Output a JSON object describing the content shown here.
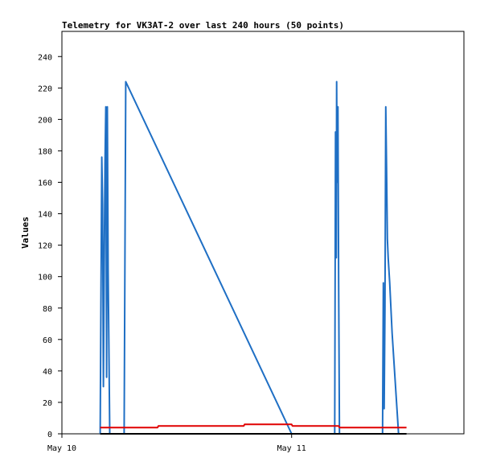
{
  "chart_data": {
    "type": "line",
    "title": "Telemetry for VK3AT-2 over last 240 hours (50 points)",
    "xlabel": "",
    "ylabel": "Values",
    "ylim": [
      0,
      256
    ],
    "yticks": [
      0,
      20,
      40,
      60,
      80,
      100,
      120,
      140,
      160,
      180,
      200,
      220,
      240
    ],
    "xlim": [
      "2024-05-10 00:00",
      "2024-05-11 18:00"
    ],
    "xticks": [
      {
        "x": "2024-05-10 00:00",
        "label": "May 10"
      },
      {
        "x": "2024-05-11 00:00",
        "label": "May 11"
      }
    ],
    "grid": false,
    "legend": "none",
    "series": [
      {
        "color": "#1f6fc4",
        "points": [
          [
            "2024-05-10 04:00",
            0
          ],
          [
            "2024-05-10 04:05",
            88
          ],
          [
            "2024-05-10 04:10",
            176
          ],
          [
            "2024-05-10 04:15",
            146
          ],
          [
            "2024-05-10 04:20",
            30
          ],
          [
            "2024-05-10 04:25",
            104
          ],
          [
            "2024-05-10 04:30",
            172
          ],
          [
            "2024-05-10 04:35",
            208
          ],
          [
            "2024-05-10 04:40",
            36
          ],
          [
            "2024-05-10 04:45",
            208
          ],
          [
            "2024-05-10 04:50",
            104
          ],
          [
            "2024-05-10 05:00",
            0
          ],
          [
            "2024-05-10 06:30",
            0
          ],
          [
            "2024-05-10 06:35",
            112
          ],
          [
            "2024-05-10 06:40",
            224
          ],
          [
            "2024-05-11 00:00",
            0
          ],
          [
            "2024-05-11 04:30",
            0
          ],
          [
            "2024-05-11 04:35",
            192
          ],
          [
            "2024-05-11 04:40",
            112
          ],
          [
            "2024-05-11 04:42",
            224
          ],
          [
            "2024-05-11 04:45",
            160
          ],
          [
            "2024-05-11 04:50",
            208
          ],
          [
            "2024-05-11 04:55",
            96
          ],
          [
            "2024-05-11 05:00",
            0
          ],
          [
            "2024-05-11 09:30",
            0
          ],
          [
            "2024-05-11 09:35",
            96
          ],
          [
            "2024-05-11 09:40",
            16
          ],
          [
            "2024-05-11 09:45",
            80
          ],
          [
            "2024-05-11 09:50",
            208
          ],
          [
            "2024-05-11 09:55",
            168
          ],
          [
            "2024-05-11 10:00",
            124
          ],
          [
            "2024-05-11 10:05",
            112
          ],
          [
            "2024-05-11 10:15",
            96
          ],
          [
            "2024-05-11 10:30",
            64
          ],
          [
            "2024-05-11 10:50",
            32
          ],
          [
            "2024-05-11 11:10",
            0
          ]
        ]
      },
      {
        "color": "#e00000",
        "points": [
          [
            "2024-05-10 04:00",
            4
          ],
          [
            "2024-05-10 10:00",
            4
          ],
          [
            "2024-05-10 10:05",
            5
          ],
          [
            "2024-05-10 19:00",
            5
          ],
          [
            "2024-05-10 19:05",
            6
          ],
          [
            "2024-05-11 00:00",
            6
          ],
          [
            "2024-05-11 00:05",
            5
          ],
          [
            "2024-05-11 04:55",
            5
          ],
          [
            "2024-05-11 05:00",
            4
          ],
          [
            "2024-05-11 12:00",
            4
          ]
        ]
      },
      {
        "color": "#000000",
        "points": [
          [
            "2024-05-10 04:00",
            0
          ],
          [
            "2024-05-11 12:00",
            0
          ]
        ]
      }
    ]
  }
}
